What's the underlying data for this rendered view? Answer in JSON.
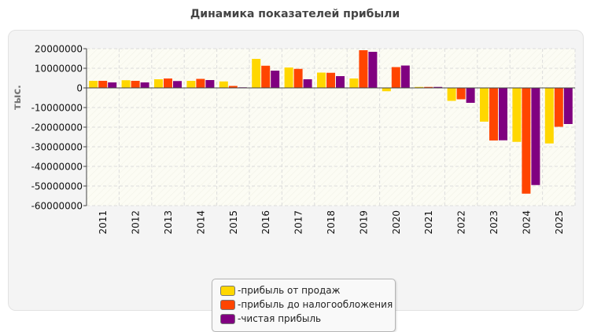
{
  "chart_data": {
    "type": "bar",
    "title": "Динамика показателей прибыли",
    "ylabel": "тыс.",
    "xlabel": "",
    "ylim": [
      -60000000,
      20000000
    ],
    "yticks": [
      20000000,
      10000000,
      0,
      -10000000,
      -20000000,
      -30000000,
      -40000000,
      -50000000,
      -60000000
    ],
    "grid": true,
    "legend_position": "bottom",
    "categories": [
      "2011",
      "2012",
      "2013",
      "2014",
      "2015",
      "2016",
      "2017",
      "2018",
      "2019",
      "2020",
      "2021",
      "2022",
      "2023",
      "2024",
      "2025"
    ],
    "series": [
      {
        "name": "прибыль от продаж",
        "color": "#ffd700",
        "values": [
          3600000,
          3900000,
          4400000,
          3600000,
          3300000,
          14800000,
          10400000,
          7800000,
          4800000,
          -1700000,
          500000,
          -6600000,
          -17200000,
          -27500000,
          -28300000
        ]
      },
      {
        "name": "прибыль до налогообложения",
        "color": "#ff4500",
        "values": [
          3600000,
          3600000,
          4800000,
          4600000,
          1000000,
          11300000,
          9700000,
          7700000,
          19200000,
          10600000,
          500000,
          -5800000,
          -26800000,
          -53900000,
          -19800000
        ]
      },
      {
        "name": "чистая прибыль",
        "color": "#800080",
        "values": [
          2800000,
          2800000,
          3500000,
          4000000,
          300000,
          8800000,
          4400000,
          6000000,
          18400000,
          11400000,
          500000,
          -7600000,
          -26700000,
          -49500000,
          -18400000
        ]
      }
    ],
    "legend_prefix": "- "
  }
}
